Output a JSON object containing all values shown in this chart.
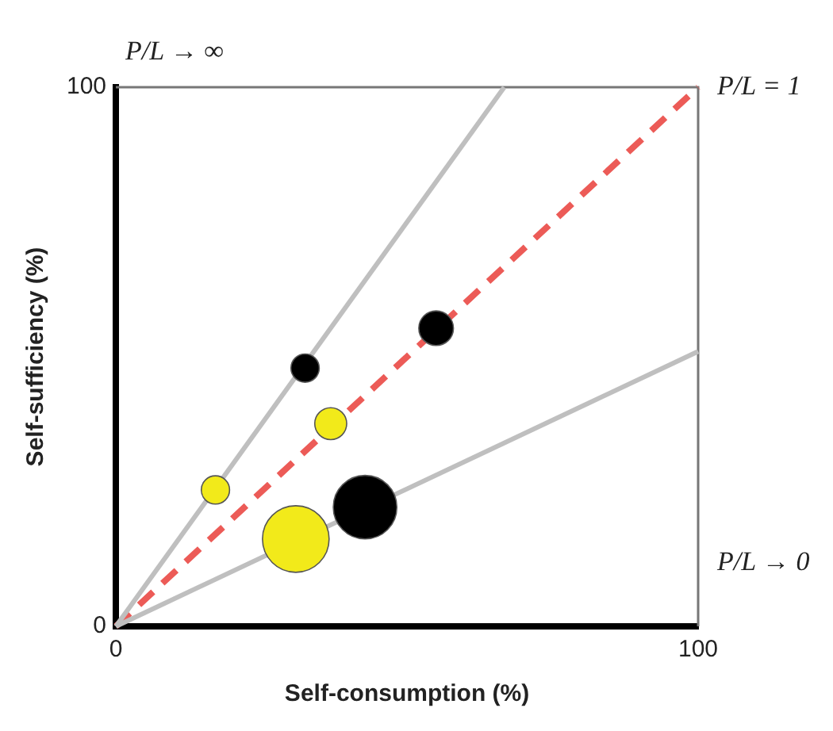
{
  "chart_data": {
    "type": "bubble",
    "xlabel": "Self-consumption (%)",
    "ylabel": "Self-sufficiency (%)",
    "xlim": [
      0,
      100
    ],
    "ylim": [
      0,
      100
    ],
    "xticks": [
      0,
      100
    ],
    "yticks": [
      0,
      100
    ],
    "legend": false,
    "series": [
      {
        "color": "#f2ea1a",
        "x": [
          17.1,
          36.9,
          30.9
        ],
        "values": [
          25.3,
          37.6,
          16.2
        ],
        "sizes": [
          0.18,
          0.23,
          1
        ]
      },
      {
        "color": "#000000",
        "x": [
          32.5,
          55.0,
          42.8
        ],
        "values": [
          47.9,
          55.3,
          22.1
        ],
        "sizes": [
          0.18,
          0.27,
          0.91
        ]
      },
      {
        "type": "line",
        "color": "#bfbfbf",
        "x": [
          0,
          66.7
        ],
        "values": [
          0,
          100
        ],
        "line_style": "solid"
      },
      {
        "type": "line",
        "color": "#bfbfbf",
        "x": [
          0,
          100
        ],
        "values": [
          0,
          51
        ],
        "line_style": "solid"
      },
      {
        "type": "line",
        "color": "#ec5b57",
        "x": [
          0,
          100
        ],
        "values": [
          0,
          100
        ],
        "line_style": "dashed"
      }
    ],
    "annotations": [
      "P/L → ∞",
      {
        "text": "P/L = 1",
        "x": 100,
        "y": 100
      },
      "P/L → 0"
    ]
  }
}
